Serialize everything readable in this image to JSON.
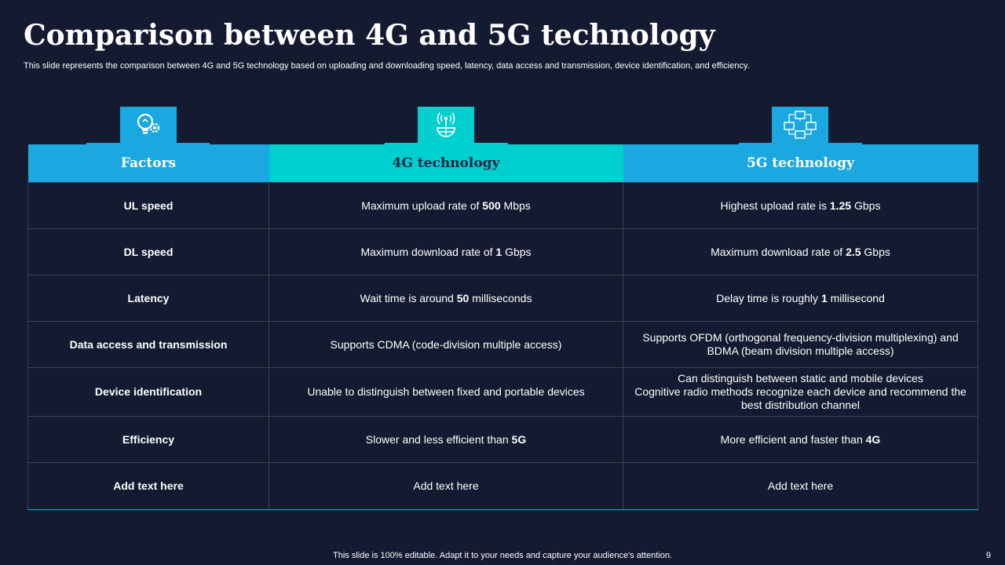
{
  "title": "Comparison between 4G and 5G technology",
  "subtitle": "This slide represents the comparison between 4G and 5G technology based on uploading and downloading speed, latency, data access and transmission, device identification, and efficiency.",
  "colors": {
    "background": "#141a30",
    "header_blue": "#1ba8e0",
    "header_teal": "#00cfcf",
    "header_text_dark": "#1a2340"
  },
  "icons": [
    "bulb-gear-icon",
    "antenna-globe-icon",
    "network-computers-icon"
  ],
  "table": {
    "headers": [
      "Factors",
      "4G technology",
      "5G technology"
    ],
    "rows": [
      {
        "factor": "UL speed",
        "g4": [
          "Maximum upload  rate of ",
          "500",
          " Mbps"
        ],
        "g5": [
          "Highest upload rate is ",
          "1.25",
          " Gbps"
        ]
      },
      {
        "factor": "DL speed",
        "g4": [
          "Maximum download rate of ",
          "1",
          " Gbps"
        ],
        "g5": [
          "Maximum download rate of ",
          "2.5",
          " Gbps"
        ]
      },
      {
        "factor": "Latency",
        "g4": [
          "Wait time is around ",
          "50",
          " milliseconds"
        ],
        "g5": [
          "Delay time is roughly ",
          "1",
          " millisecond"
        ]
      },
      {
        "factor": "Data access and transmission",
        "g4": "Supports CDMA (code-division multiple access)",
        "g5": "Supports OFDM (orthogonal frequency-division multiplexing) and BDMA (beam division multiple access)"
      },
      {
        "factor": "Device identification",
        "g4": "Unable  to distinguish between fixed and portable devices",
        "g5": [
          "Can distinguish between static and mobile devices",
          "Cognitive radio methods recognize each device and recommend the best distribution channel"
        ]
      },
      {
        "factor": "Efficiency",
        "g4": [
          "Slower and less efficient than ",
          "5G",
          ""
        ],
        "g5": [
          "More efficient and faster than ",
          "4G",
          ""
        ]
      },
      {
        "factor": "Add  text here",
        "g4": "Add text here",
        "g5": "Add text here"
      }
    ]
  },
  "footer": "This slide is 100% editable. Adapt it to your needs and capture your audience's attention.",
  "page_number": "9"
}
